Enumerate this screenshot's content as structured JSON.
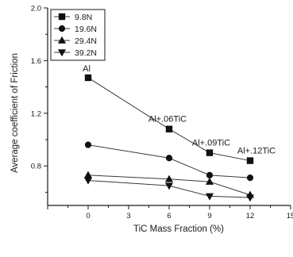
{
  "chart_data": {
    "type": "line",
    "xlabel": "TiC Mass Fraction (%)",
    "ylabel": "Average coefficient of Friction",
    "xlim": [
      -3,
      15
    ],
    "ylim": [
      0.5,
      2.0
    ],
    "x_ticks": [
      "0",
      "3",
      "6",
      "9",
      "12",
      "15"
    ],
    "y_ticks": [
      "0.8",
      "1.2",
      "1.6",
      "2.0"
    ],
    "x": [
      0,
      6,
      9,
      12
    ],
    "series": [
      {
        "name": "9.8N",
        "marker": "square",
        "values": [
          1.47,
          1.08,
          0.9,
          0.84
        ]
      },
      {
        "name": "19.6N",
        "marker": "circle",
        "values": [
          0.96,
          0.86,
          0.73,
          0.71
        ]
      },
      {
        "name": "29.4N",
        "marker": "triangle-up",
        "values": [
          0.73,
          0.7,
          0.68,
          0.58
        ]
      },
      {
        "name": "39.2N",
        "marker": "triangle-down",
        "values": [
          0.69,
          0.65,
          0.57,
          0.56
        ]
      }
    ],
    "annotations": [
      {
        "text": "Al",
        "x": 0,
        "y": 1.47
      },
      {
        "text": "Al+.06TiC",
        "x": 6,
        "y": 1.08
      },
      {
        "text": "Al+.09TiC",
        "x": 9,
        "y": 0.9
      },
      {
        "text": "Al+.12TiC",
        "x": 12,
        "y": 0.84
      }
    ],
    "legend_position": "top-left",
    "grid": false
  }
}
